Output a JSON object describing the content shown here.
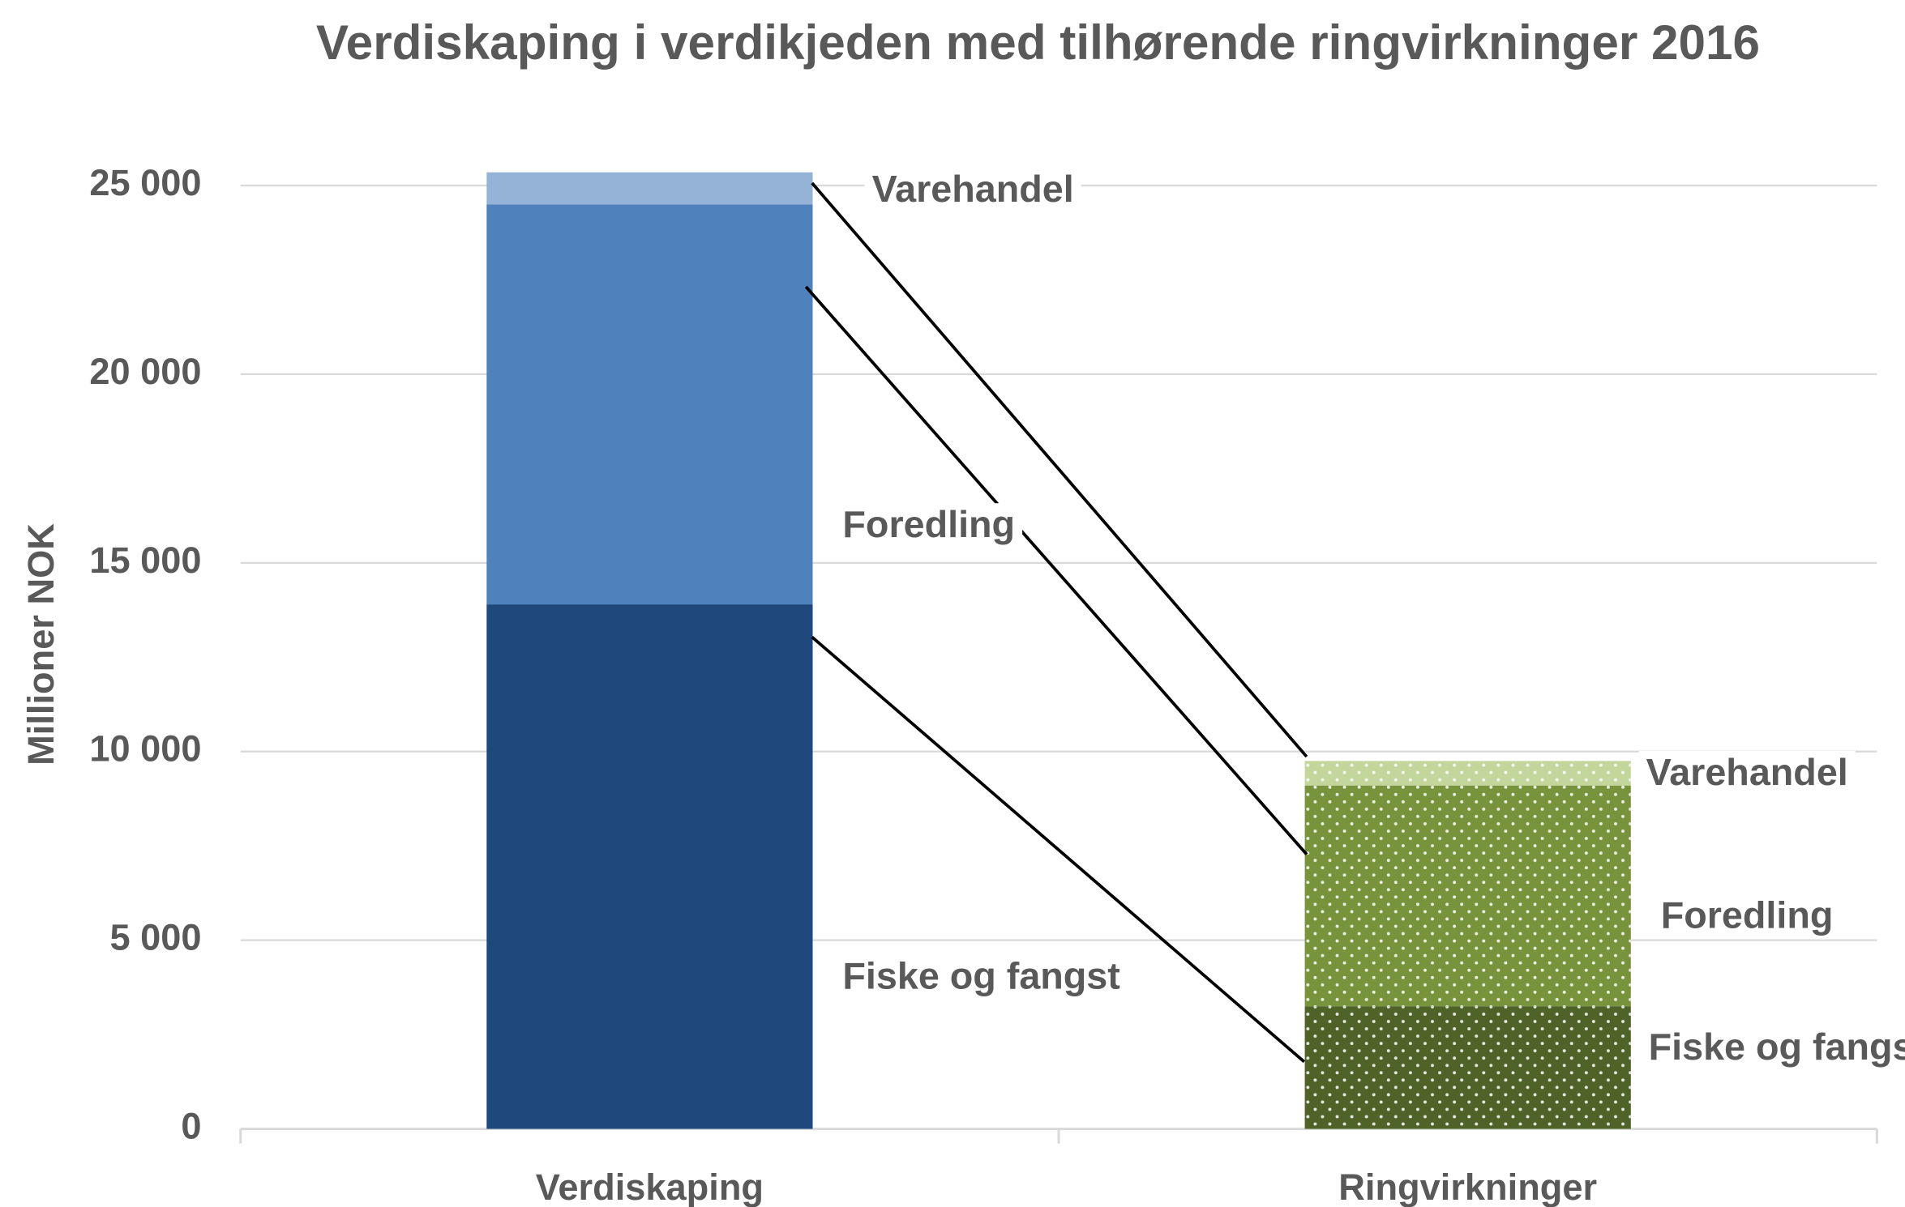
{
  "chart_data": {
    "type": "stacked-bar",
    "title": "Verdiskaping i verdikjeden med tilhørende ringvirkninger 2016",
    "y_label": "Millioner NOK",
    "categories": [
      "Verdiskaping",
      "Ringvirkninger"
    ],
    "series": [
      {
        "name": "Fiske og fangst",
        "colors": [
          "#1f497d",
          "#4f6228"
        ],
        "values": [
          13900,
          3250
        ]
      },
      {
        "name": "Foredling",
        "colors": [
          "#4f81bd",
          "#77933c"
        ],
        "values": [
          10600,
          5850
        ]
      },
      {
        "name": "Varehandel",
        "colors": [
          "#95b3d7",
          "#c3d69b"
        ],
        "values": [
          850,
          650
        ]
      }
    ],
    "ylim": [
      0,
      25000
    ],
    "yticks": [
      0,
      {
        "value": 5000,
        "label": "5 000"
      },
      {
        "value": 10000,
        "label": "10 000"
      },
      {
        "value": 15000,
        "label": "15 000"
      },
      {
        "value": 20000,
        "label": "20 000"
      },
      {
        "value": 25000,
        "label": "25 000"
      }
    ],
    "grid": true
  }
}
